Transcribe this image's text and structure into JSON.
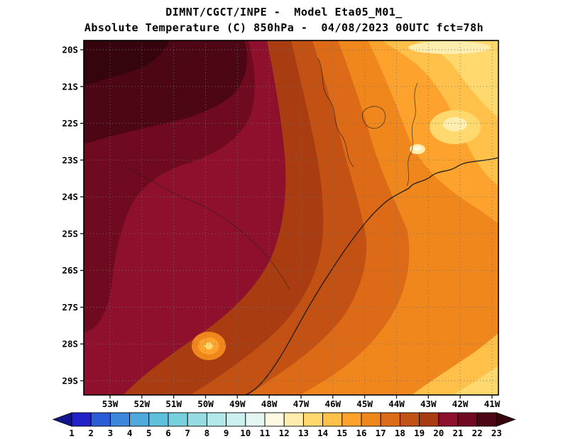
{
  "title": {
    "line1": "DIMNT/CGCT/INPE -  Model Eta05_M01_",
    "line2": "Absolute Temperature (C) 850hPa -  04/08/2023 00UTC fct=78h"
  },
  "map": {
    "lat_labels": [
      "20S",
      "21S",
      "22S",
      "23S",
      "24S",
      "25S",
      "26S",
      "27S",
      "28S",
      "29S"
    ],
    "lon_labels": [
      "53W",
      "52W",
      "51W",
      "50W",
      "49W",
      "48W",
      "47W",
      "46W",
      "45W",
      "44W",
      "43W",
      "42W",
      "41W"
    ]
  },
  "colorbar": {
    "tick_labels": [
      "1",
      "2",
      "3",
      "4",
      "5",
      "6",
      "7",
      "8",
      "9",
      "10",
      "11",
      "12",
      "13",
      "14",
      "15",
      "16",
      "17",
      "18",
      "19",
      "20",
      "21",
      "22",
      "23"
    ],
    "colors": [
      "#14148c",
      "#2222c8",
      "#2b5cd8",
      "#3c86dc",
      "#4fa8de",
      "#5fc0dc",
      "#78cfdd",
      "#95dde2",
      "#b2e8e8",
      "#ccf0ee",
      "#e4f6f2",
      "#fdf9e2",
      "#ffedae",
      "#ffd96e",
      "#ffc14a",
      "#fda22c",
      "#f0871d",
      "#dc6a16",
      "#c35113",
      "#a93c10",
      "#8f102c",
      "#6f0a20",
      "#4d0714",
      "#36040d"
    ]
  },
  "chart_data": {
    "type": "heatmap",
    "variable": "Absolute Temperature",
    "units": "C",
    "level": "850hPa",
    "model": "Eta05_M01_",
    "run": "04/08/2023 00UTC",
    "forecast_hour": "78h",
    "lat_ticks": [
      "20S",
      "21S",
      "22S",
      "23S",
      "24S",
      "25S",
      "26S",
      "27S",
      "28S",
      "29S"
    ],
    "lon_ticks": [
      "53W",
      "52W",
      "51W",
      "50W",
      "49W",
      "48W",
      "47W",
      "46W",
      "45W",
      "44W",
      "43W",
      "42W",
      "41W"
    ],
    "scale_min": 1,
    "scale_max": 23,
    "approx_field": "Darkest (>21C, up to >23C) over the west/northwest, ~20-21C large wine-red region west-central, 18-20C central band, decreasing through 15-17C oranges eastward, lightest 12-14C yellows in the northeast corner and along the southeast/east edges"
  }
}
